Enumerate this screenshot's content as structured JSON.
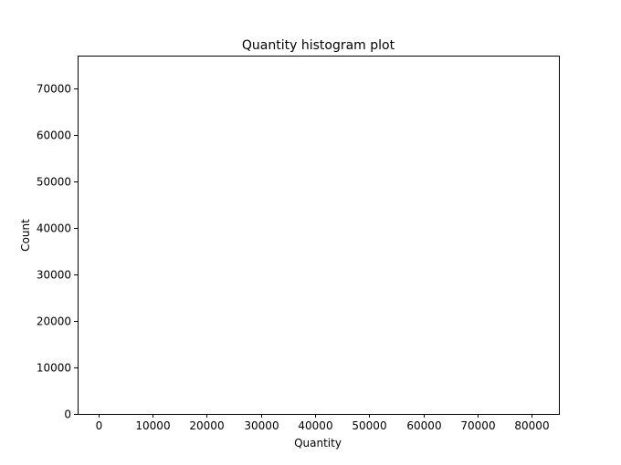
{
  "chart_data": {
    "type": "bar",
    "title": "Quantity histogram plot",
    "xlabel": "Quantity",
    "ylabel": "Count",
    "xlim": [
      -3800,
      85000
    ],
    "ylim": [
      0,
      77000
    ],
    "x_ticks": [
      0,
      10000,
      20000,
      30000,
      40000,
      50000,
      60000,
      70000,
      80000
    ],
    "y_ticks": [
      0,
      10000,
      20000,
      30000,
      40000,
      50000,
      60000,
      70000
    ],
    "bins": [],
    "grid": false,
    "legend": "none"
  }
}
